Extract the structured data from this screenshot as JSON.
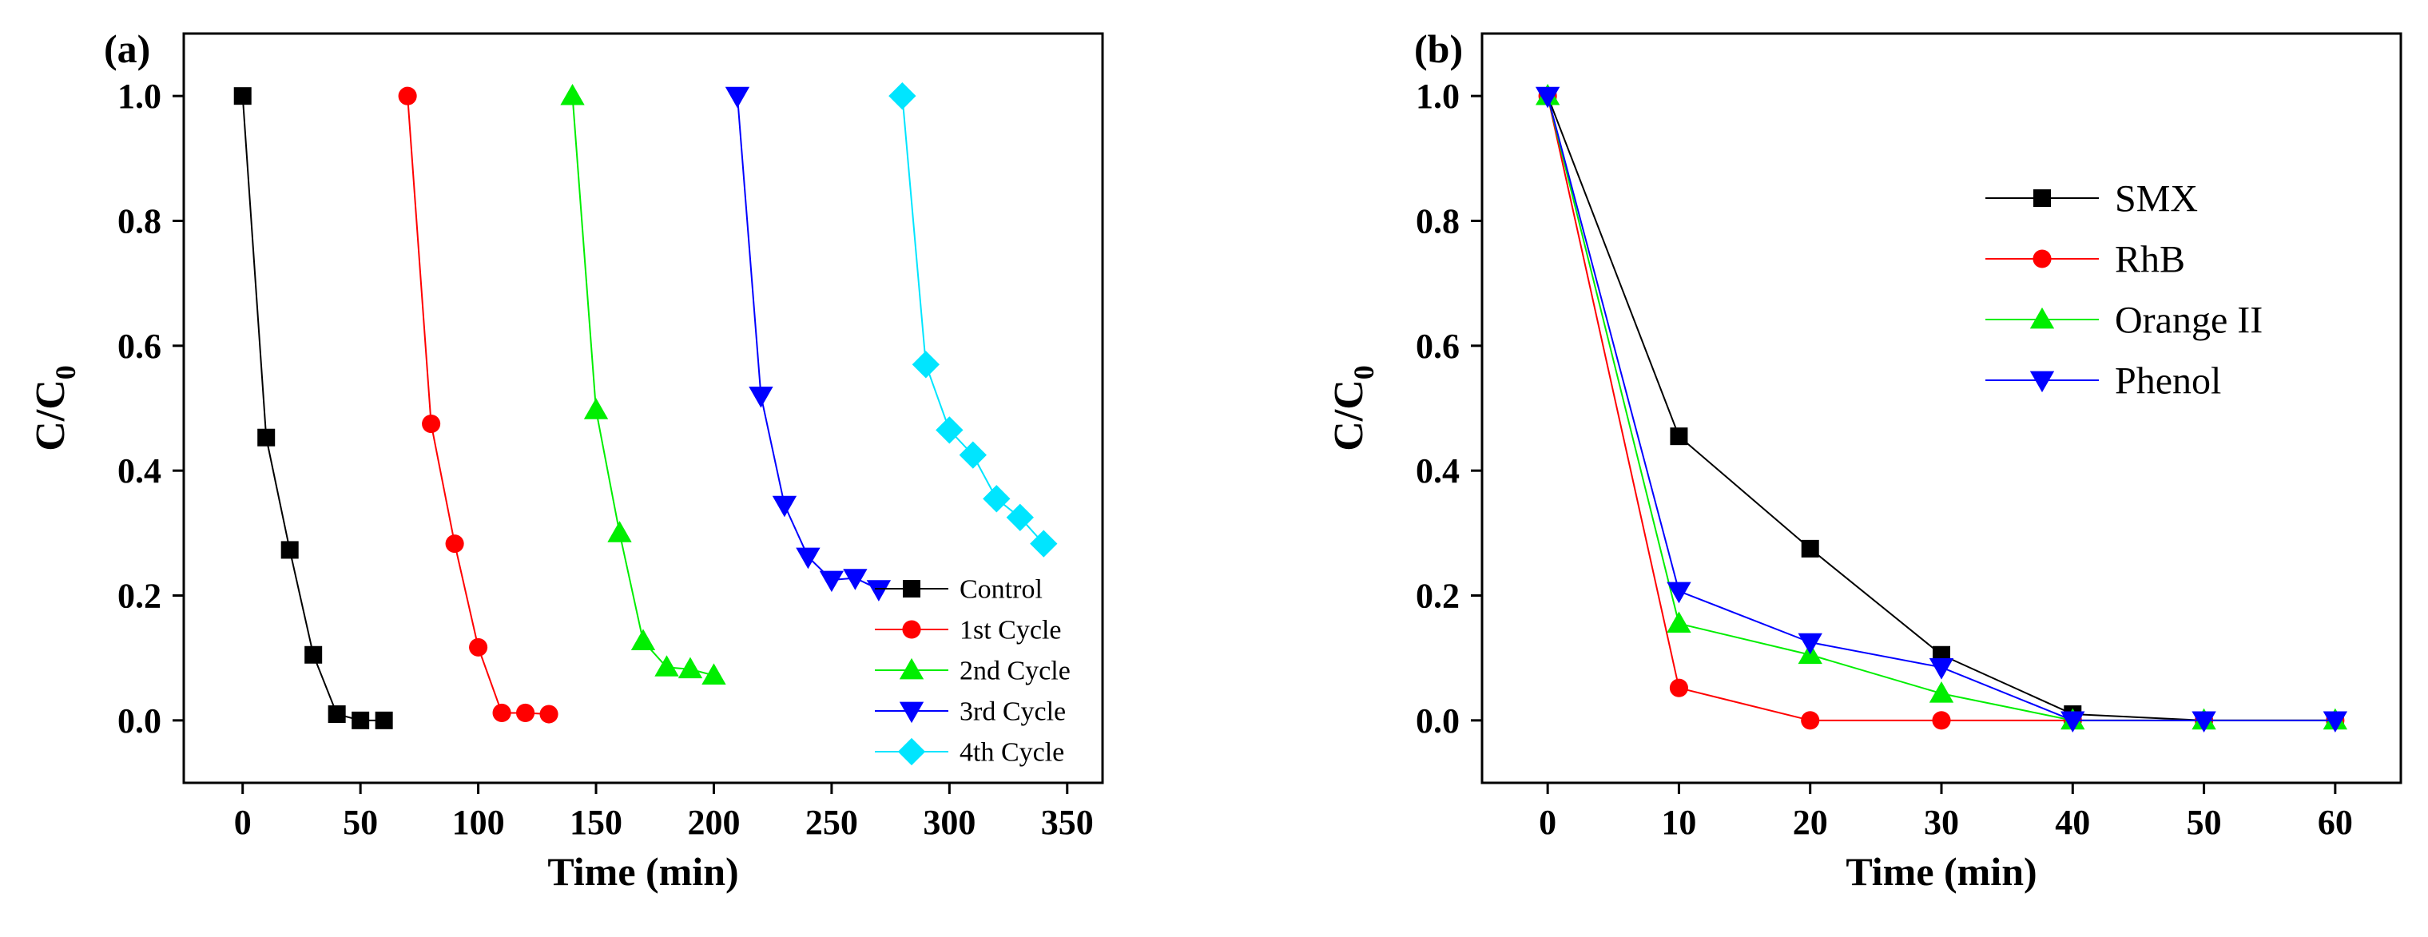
{
  "chart_data": [
    {
      "type": "line",
      "panel_label": "(a)",
      "title": "",
      "xlabel": "Time (min)",
      "ylabel_main": "C/C",
      "ylabel_sub": "0",
      "xlim": [
        -25,
        365
      ],
      "ylim": [
        -0.1,
        1.1
      ],
      "xticks": [
        0,
        50,
        100,
        150,
        200,
        250,
        300,
        350
      ],
      "xtick_labels": [
        "0",
        "50",
        "100",
        "150",
        "200",
        "250",
        "300",
        "350"
      ],
      "yticks": [
        0.0,
        0.2,
        0.4,
        0.6,
        0.8,
        1.0
      ],
      "ytick_labels": [
        "0.0",
        "0.2",
        "0.4",
        "0.6",
        "0.8",
        "1.0"
      ],
      "legend_position": "bottom-right",
      "series": [
        {
          "name": "Control",
          "color": "#000000",
          "marker": "square",
          "x": [
            0,
            10,
            20,
            30,
            40,
            50,
            60
          ],
          "y": [
            1.0,
            0.453,
            0.273,
            0.105,
            0.01,
            0.0,
            0.0
          ]
        },
        {
          "name": "1st Cycle",
          "color": "#ff0000",
          "marker": "circle",
          "x": [
            70,
            80,
            90,
            100,
            110,
            120,
            130
          ],
          "y": [
            1.0,
            0.475,
            0.283,
            0.117,
            0.012,
            0.012,
            0.01
          ]
        },
        {
          "name": "2nd Cycle",
          "color": "#00ee00",
          "marker": "triangle-up",
          "x": [
            140,
            150,
            160,
            170,
            180,
            190,
            200
          ],
          "y": [
            1.0,
            0.497,
            0.3,
            0.127,
            0.085,
            0.082,
            0.072
          ]
        },
        {
          "name": "3rd Cycle",
          "color": "#0000ff",
          "marker": "triangle-down",
          "x": [
            210,
            220,
            230,
            240,
            250,
            260,
            270
          ],
          "y": [
            1.0,
            0.52,
            0.345,
            0.262,
            0.225,
            0.228,
            0.21
          ]
        },
        {
          "name": "4th Cycle",
          "color": "#00e5ff",
          "marker": "diamond",
          "x": [
            280,
            290,
            300,
            310,
            320,
            330,
            340
          ],
          "y": [
            1.0,
            0.57,
            0.465,
            0.425,
            0.355,
            0.325,
            0.283
          ]
        }
      ]
    },
    {
      "type": "line",
      "panel_label": "(b)",
      "title": "",
      "xlabel": "Time (min)",
      "ylabel_main": "C/C",
      "ylabel_sub": "0",
      "xlim": [
        -5,
        65
      ],
      "ylim": [
        -0.1,
        1.1
      ],
      "xticks": [
        0,
        10,
        20,
        30,
        40,
        50,
        60
      ],
      "xtick_labels": [
        "0",
        "10",
        "20",
        "30",
        "40",
        "50",
        "60"
      ],
      "yticks": [
        0.0,
        0.2,
        0.4,
        0.6,
        0.8,
        1.0
      ],
      "ytick_labels": [
        "0.0",
        "0.2",
        "0.4",
        "0.6",
        "0.8",
        "1.0"
      ],
      "legend_position": "top-right",
      "series": [
        {
          "name": "SMX",
          "color": "#000000",
          "marker": "square",
          "x": [
            0,
            10,
            20,
            30,
            40,
            50,
            60
          ],
          "y": [
            1.0,
            0.455,
            0.275,
            0.105,
            0.01,
            0.0,
            0.0
          ]
        },
        {
          "name": "RhB",
          "color": "#ff0000",
          "marker": "circle",
          "x": [
            0,
            10,
            20,
            30,
            40,
            50,
            60
          ],
          "y": [
            1.0,
            0.052,
            0.0,
            0.0,
            0.0,
            0.0,
            0.0
          ]
        },
        {
          "name": "Orange II",
          "color": "#00ee00",
          "marker": "triangle-up",
          "x": [
            0,
            10,
            20,
            30,
            40,
            50,
            60
          ],
          "y": [
            1.0,
            0.155,
            0.105,
            0.043,
            0.0,
            0.0,
            0.0
          ]
        },
        {
          "name": "Phenol",
          "color": "#0000ff",
          "marker": "triangle-down",
          "x": [
            0,
            10,
            20,
            30,
            40,
            50,
            60
          ],
          "y": [
            1.0,
            0.207,
            0.125,
            0.085,
            0.0,
            0.0,
            0.0
          ]
        }
      ]
    }
  ]
}
